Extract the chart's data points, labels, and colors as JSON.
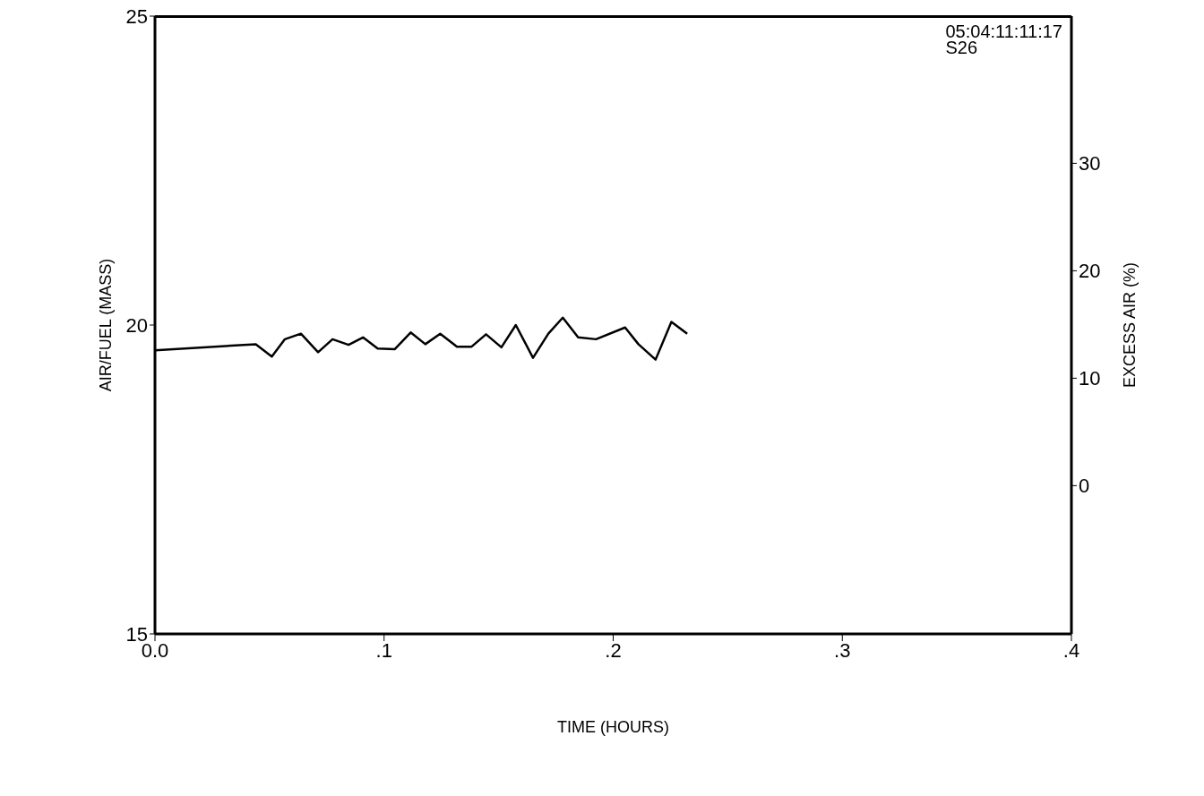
{
  "chart_data": {
    "type": "line",
    "xlabel": "TIME (HOURS)",
    "ylabel": "AIR/FUEL (MASS)",
    "y2label": "EXCESS AIR (%)",
    "x": [
      0,
      0.044,
      0.051,
      0.0567,
      0.0637,
      0.0712,
      0.0775,
      0.0845,
      0.0908,
      0.0972,
      0.1047,
      0.1116,
      0.118,
      0.1245,
      0.1318,
      0.1382,
      0.1445,
      0.1512,
      0.1575,
      0.165,
      0.1717,
      0.178,
      0.1847,
      0.1925,
      0.2052,
      0.211,
      0.2185,
      0.2254,
      0.2323
    ],
    "series": [
      {
        "color": "#000000",
        "values": [
          19.59,
          19.69,
          19.49,
          19.77,
          19.86,
          19.56,
          19.77,
          19.68,
          19.8,
          19.62,
          19.61,
          19.88,
          19.69,
          19.86,
          19.65,
          19.65,
          19.85,
          19.64,
          20.0,
          19.47,
          19.86,
          20.12,
          19.8,
          19.77,
          19.96,
          19.69,
          19.44,
          20.05,
          19.86
        ]
      }
    ],
    "xlim": [
      0,
      0.4
    ],
    "xticks": [
      {
        "value": 0,
        "label": "0.0"
      },
      {
        "value": 0.1,
        "label": ".1"
      },
      {
        "value": 0.2,
        "label": ".2"
      },
      {
        "value": 0.3,
        "label": ".3"
      },
      {
        "value": 0.4,
        "label": ".4"
      }
    ],
    "ylim": [
      15,
      25
    ],
    "yticks": [
      15,
      20,
      25
    ],
    "y2lim": [
      -13.8,
      43.7
    ],
    "y2ticks": [
      0,
      10,
      20,
      30
    ],
    "annotations": [
      "05:04:11:11:17",
      "S26"
    ],
    "grid": false,
    "legend": false,
    "marker": "none",
    "line_style": "solid"
  }
}
